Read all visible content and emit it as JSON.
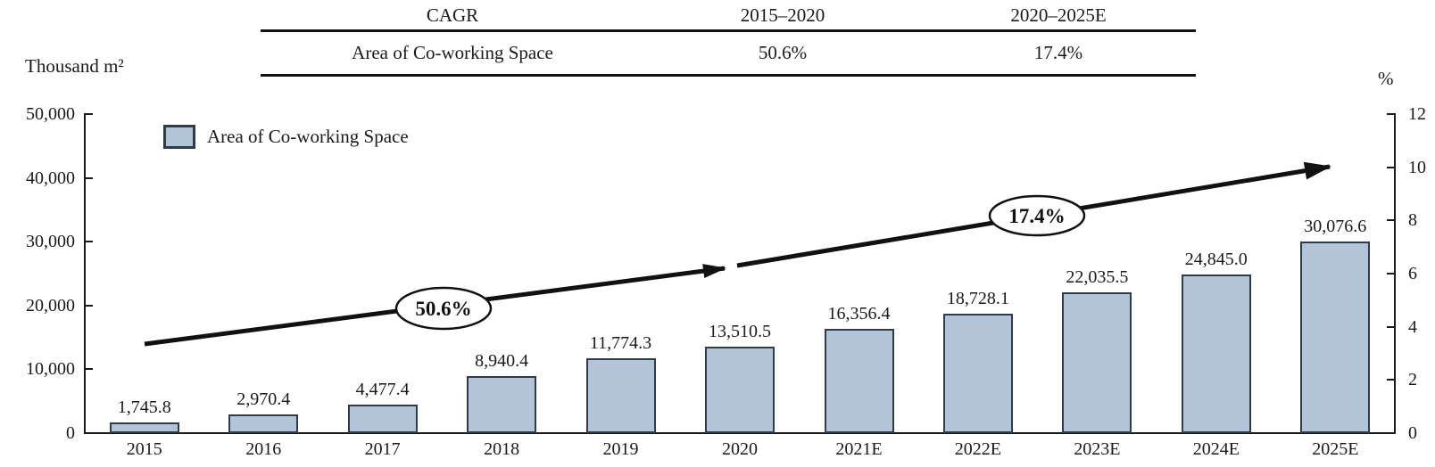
{
  "left_axis_title": "Thousand m²",
  "right_axis_title": "%",
  "table": {
    "header": {
      "col0": "CAGR",
      "col1": "2015–2020",
      "col2": "2020–2025E"
    },
    "row": {
      "col0": "Area of Co-working Space",
      "col1": "50.6%",
      "col2": "17.4%"
    }
  },
  "legend": {
    "label": "Area of Co-working Space"
  },
  "colors": {
    "bar_fill": "#B2C5D8",
    "bar_border": "#2F3B49",
    "axis": "#1A1A1A",
    "annotation_stroke": "#111111",
    "annotation_fill": "#FFFFFF"
  },
  "chart_data": {
    "type": "bar",
    "title": "",
    "xlabel": "",
    "ylabel": "Thousand m²",
    "y2label": "%",
    "categories": [
      "2015",
      "2016",
      "2017",
      "2018",
      "2019",
      "2020",
      "2021E",
      "2022E",
      "2023E",
      "2024E",
      "2025E"
    ],
    "values": [
      1745.8,
      2970.4,
      4477.4,
      8940.4,
      11774.3,
      13510.5,
      16356.4,
      18728.1,
      22035.5,
      24845.0,
      30076.6
    ],
    "value_labels": [
      "1,745.8",
      "2,970.4",
      "4,477.4",
      "8,940.4",
      "11,774.3",
      "13,510.5",
      "16,356.4",
      "18,728.1",
      "22,035.5",
      "24,845.0",
      "30,076.6"
    ],
    "series": [
      {
        "name": "Area of Co-working Space",
        "values": [
          1745.8,
          2970.4,
          4477.4,
          8940.4,
          11774.3,
          13510.5,
          16356.4,
          18728.1,
          22035.5,
          24845.0,
          30076.6
        ]
      }
    ],
    "left_axis": {
      "label": "Thousand m²",
      "ticks": [
        "0",
        "10,000",
        "20,000",
        "30,000",
        "40,000",
        "50,000"
      ],
      "range": [
        0,
        50000
      ]
    },
    "right_axis": {
      "label": "%",
      "ticks": [
        "0",
        "2",
        "4",
        "6",
        "8",
        "10",
        "12"
      ],
      "range": [
        0,
        12
      ]
    },
    "annotations": [
      {
        "text": "50.6%"
      },
      {
        "text": "17.4%"
      }
    ],
    "cagr": {
      "2015-2020": "50.6%",
      "2020-2025E": "17.4%"
    },
    "legend_position": "top-left",
    "grid": false
  }
}
